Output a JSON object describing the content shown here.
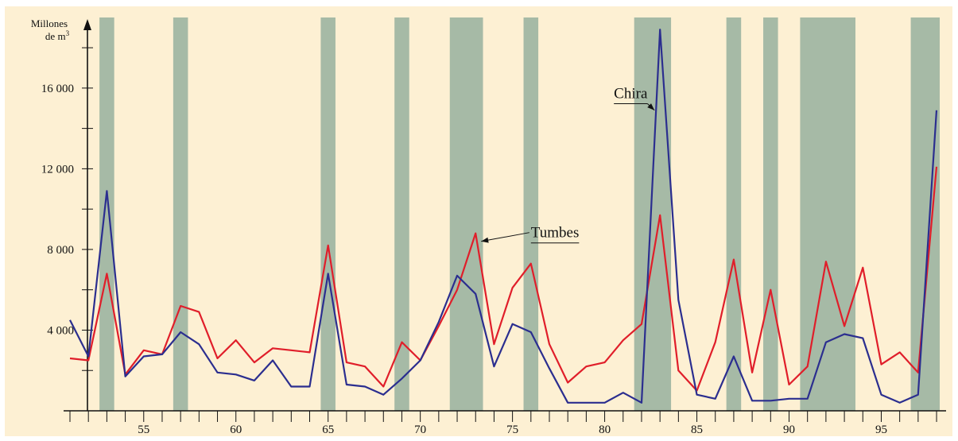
{
  "chart_data": {
    "type": "line",
    "title": "",
    "ylabel_line1": "Millones",
    "ylabel_line2_base": "de m",
    "ylabel_line2_sup": "3",
    "xlabel": "",
    "xlim": [
      51,
      98.3
    ],
    "ylim": [
      0,
      19500
    ],
    "yticks": [
      4000,
      8000,
      12000,
      16000
    ],
    "ytick_labels": [
      "4 000",
      "8 000",
      "12 000",
      "16 000"
    ],
    "xticks": [
      55,
      60,
      65,
      70,
      75,
      80,
      85,
      90,
      95
    ],
    "xtick_labels": [
      "55",
      "60",
      "65",
      "70",
      "75",
      "80",
      "85",
      "90",
      "95"
    ],
    "grid": false,
    "background_color": "#fdf0d3",
    "band_color": "#a6baa6",
    "shaded_periods": [
      [
        52.6,
        53.4
      ],
      [
        56.6,
        57.4
      ],
      [
        64.6,
        65.4
      ],
      [
        68.6,
        69.4
      ],
      [
        71.6,
        73.4
      ],
      [
        75.6,
        76.4
      ],
      [
        81.6,
        83.6
      ],
      [
        86.6,
        87.4
      ],
      [
        88.6,
        89.4
      ],
      [
        90.6,
        93.6
      ],
      [
        96.6,
        98.6
      ]
    ],
    "x": [
      51,
      52,
      53,
      54,
      55,
      56,
      57,
      58,
      59,
      60,
      61,
      62,
      63,
      64,
      65,
      66,
      67,
      68,
      69,
      70,
      71,
      72,
      73,
      74,
      75,
      76,
      77,
      78,
      79,
      80,
      81,
      82,
      83,
      84,
      85,
      86,
      87,
      88,
      89,
      90,
      91,
      92,
      93,
      94,
      95,
      96,
      97,
      98
    ],
    "series": [
      {
        "key": "tumbes",
        "color": "#e01e2a",
        "values": [
          2600,
          2500,
          6800,
          1800,
          3000,
          2800,
          5200,
          4900,
          2600,
          3500,
          2400,
          3100,
          3000,
          2900,
          8200,
          2400,
          2200,
          1200,
          3400,
          2500,
          4200,
          6000,
          8800,
          3300,
          6100,
          7300,
          3300,
          1400,
          2200,
          2400,
          3500,
          4300,
          9700,
          2000,
          1000,
          3400,
          7500,
          1900,
          6000,
          1300,
          2200,
          7400,
          4200,
          7100,
          2300,
          2900,
          1900,
          12100
        ]
      },
      {
        "key": "chira",
        "color": "#2b2e8f",
        "values": [
          4500,
          2700,
          10900,
          1700,
          2700,
          2800,
          3900,
          3300,
          1900,
          1800,
          1500,
          2500,
          1200,
          1200,
          6800,
          1300,
          1200,
          800,
          1600,
          2500,
          4400,
          6700,
          5800,
          2200,
          4300,
          3900,
          2100,
          400,
          400,
          400,
          900,
          400,
          18900,
          5500,
          800,
          600,
          2700,
          500,
          500,
          600,
          600,
          3400,
          3800,
          3600,
          800,
          400,
          800,
          14900
        ]
      }
    ],
    "annotations": [
      {
        "text": "Tumbes",
        "target_x": 73.3,
        "target_y": 8400,
        "text_x": 76.0,
        "text_y": 8600
      },
      {
        "text": "Chira",
        "target_x": 82.7,
        "target_y": 14900,
        "text_x": 80.5,
        "text_y": 15500
      }
    ]
  }
}
